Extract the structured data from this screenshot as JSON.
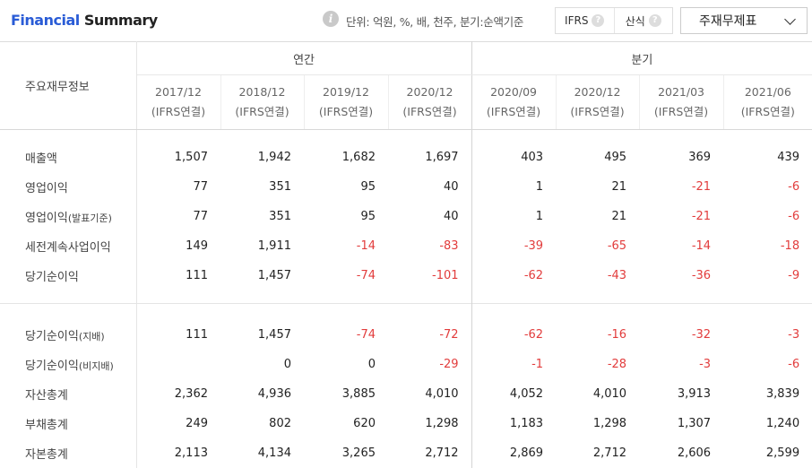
{
  "header": {
    "title_part1": "Financial",
    "title_part2": "Summary",
    "unit_text": "단위: 억원, %, 배, 천주, 분기:순액기준",
    "toggle_ifrs": "IFRS",
    "toggle_calc": "산식",
    "select_value": "주재무제표"
  },
  "table": {
    "label_header": "주요재무정보",
    "group_annual": "연간",
    "group_quarter": "분기",
    "columns": [
      {
        "period": "2017/12",
        "basis": "(IFRS연결)"
      },
      {
        "period": "2018/12",
        "basis": "(IFRS연결)"
      },
      {
        "period": "2019/12",
        "basis": "(IFRS연결)"
      },
      {
        "period": "2020/12",
        "basis": "(IFRS연결)"
      },
      {
        "period": "2020/09",
        "basis": "(IFRS연결)"
      },
      {
        "period": "2020/12",
        "basis": "(IFRS연결)"
      },
      {
        "period": "2021/03",
        "basis": "(IFRS연결)"
      },
      {
        "period": "2021/06",
        "basis": "(IFRS연결)"
      }
    ],
    "rows_group1": [
      {
        "label": "매출액",
        "suffix": "",
        "values": [
          "1,507",
          "1,942",
          "1,682",
          "1,697",
          "403",
          "495",
          "369",
          "439"
        ]
      },
      {
        "label": "영업이익",
        "suffix": "",
        "values": [
          "77",
          "351",
          "95",
          "40",
          "1",
          "21",
          "-21",
          "-6"
        ]
      },
      {
        "label": "영업이익",
        "suffix": "(발표기준)",
        "values": [
          "77",
          "351",
          "95",
          "40",
          "1",
          "21",
          "-21",
          "-6"
        ]
      },
      {
        "label": "세전계속사업이익",
        "suffix": "",
        "values": [
          "149",
          "1,911",
          "-14",
          "-83",
          "-39",
          "-65",
          "-14",
          "-18"
        ]
      },
      {
        "label": "당기순이익",
        "suffix": "",
        "values": [
          "111",
          "1,457",
          "-74",
          "-101",
          "-62",
          "-43",
          "-36",
          "-9"
        ]
      }
    ],
    "rows_group2": [
      {
        "label": "당기순이익",
        "suffix": "(지배)",
        "values": [
          "111",
          "1,457",
          "-74",
          "-72",
          "-62",
          "-16",
          "-32",
          "-3"
        ]
      },
      {
        "label": "당기순이익",
        "suffix": "(비지배)",
        "values": [
          "",
          "0",
          "0",
          "-29",
          "-1",
          "-28",
          "-3",
          "-6"
        ]
      },
      {
        "label": "자산총계",
        "suffix": "",
        "values": [
          "2,362",
          "4,936",
          "3,885",
          "4,010",
          "4,052",
          "4,010",
          "3,913",
          "3,839"
        ]
      },
      {
        "label": "부채총계",
        "suffix": "",
        "values": [
          "249",
          "802",
          "620",
          "1,298",
          "1,183",
          "1,298",
          "1,307",
          "1,240"
        ]
      },
      {
        "label": "자본총계",
        "suffix": "",
        "values": [
          "2,113",
          "4,134",
          "3,265",
          "2,712",
          "2,869",
          "2,712",
          "2,606",
          "2,599"
        ]
      }
    ]
  }
}
